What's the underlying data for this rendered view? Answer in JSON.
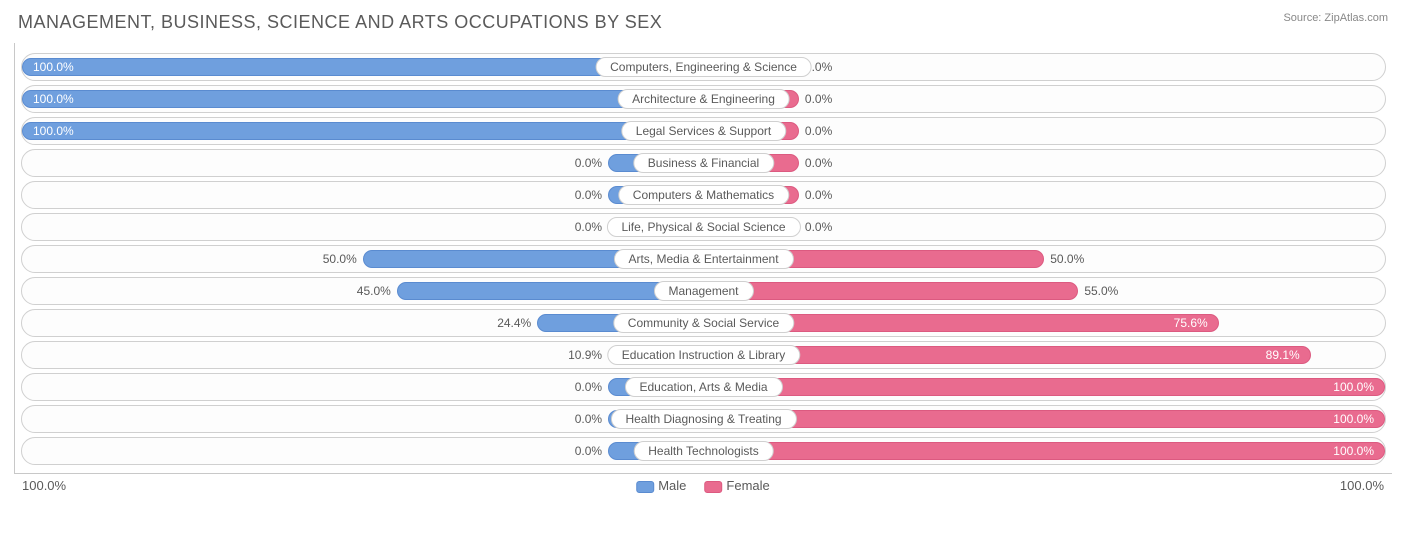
{
  "title": "MANAGEMENT, BUSINESS, SCIENCE AND ARTS OCCUPATIONS BY SEX",
  "source": "Source: ZipAtlas.com",
  "chart": {
    "type": "diverging-bar",
    "male_color": "#6f9fde",
    "male_border": "#5a8bd0",
    "female_color": "#e96b8f",
    "female_border": "#dc5a80",
    "track_border": "#d0d0d0",
    "track_bg": "#fdfdfd",
    "text_color": "#5a5a5a",
    "min_bar_pct": 14,
    "axis_left": "100.0%",
    "axis_right": "100.0%",
    "legend": {
      "male": "Male",
      "female": "Female"
    },
    "rows": [
      {
        "label": "Computers, Engineering & Science",
        "male": 100.0,
        "female": 0.0
      },
      {
        "label": "Architecture & Engineering",
        "male": 100.0,
        "female": 0.0
      },
      {
        "label": "Legal Services & Support",
        "male": 100.0,
        "female": 0.0
      },
      {
        "label": "Business & Financial",
        "male": 0.0,
        "female": 0.0
      },
      {
        "label": "Computers & Mathematics",
        "male": 0.0,
        "female": 0.0
      },
      {
        "label": "Life, Physical & Social Science",
        "male": 0.0,
        "female": 0.0
      },
      {
        "label": "Arts, Media & Entertainment",
        "male": 50.0,
        "female": 50.0
      },
      {
        "label": "Management",
        "male": 45.0,
        "female": 55.0
      },
      {
        "label": "Community & Social Service",
        "male": 24.4,
        "female": 75.6
      },
      {
        "label": "Education Instruction & Library",
        "male": 10.9,
        "female": 89.1
      },
      {
        "label": "Education, Arts & Media",
        "male": 0.0,
        "female": 100.0
      },
      {
        "label": "Health Diagnosing & Treating",
        "male": 0.0,
        "female": 100.0
      },
      {
        "label": "Health Technologists",
        "male": 0.0,
        "female": 100.0
      }
    ]
  }
}
